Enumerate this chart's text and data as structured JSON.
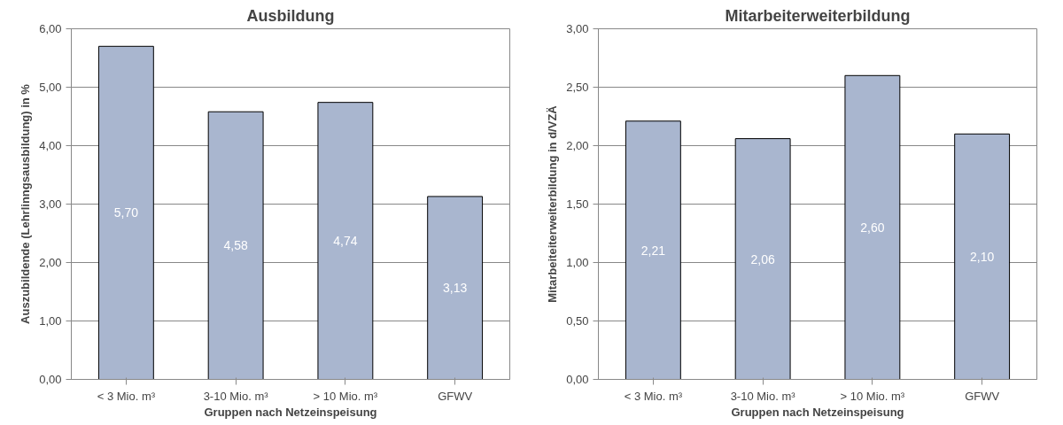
{
  "chart_data": [
    {
      "type": "bar",
      "title": "Ausbildung",
      "xlabel": "Gruppen nach Netzeinspeisung",
      "ylabel": "Auszubildende (Lehrlinngsausbildung) in %",
      "categories": [
        "< 3 Mio. m³",
        "3-10 Mio. m³",
        "> 10 Mio. m³",
        "GFWV"
      ],
      "values": [
        5.7,
        4.58,
        4.74,
        3.13
      ],
      "color": "#a9b6cf",
      "value_labels": [
        "5,70",
        "4,58",
        "4,74",
        "3,13"
      ],
      "ylim": [
        0,
        6
      ],
      "yticks": [
        {
          "value": 0,
          "label": "0,00"
        },
        {
          "value": 1,
          "label": "1,00"
        },
        {
          "value": 2,
          "label": "2,00"
        },
        {
          "value": 3,
          "label": "3,00"
        },
        {
          "value": 4,
          "label": "4,00"
        },
        {
          "value": 5,
          "label": "5,00"
        },
        {
          "value": 6,
          "label": "6,00"
        }
      ],
      "grid": "y",
      "legend": false
    },
    {
      "type": "bar",
      "title": "Mitarbeiterweiterbildung",
      "xlabel": "Gruppen nach Netzeinspeisung",
      "ylabel": "Mitarbeiteiterweiterbildung in d/VZÄ",
      "categories": [
        "< 3 Mio. m³",
        "3-10 Mio. m³",
        "> 10 Mio. m³",
        "GFWV"
      ],
      "values": [
        2.21,
        2.06,
        2.6,
        2.1
      ],
      "color": "#a9b6cf",
      "value_labels": [
        "2,21",
        "2,06",
        "2,60",
        "2,10"
      ],
      "ylim": [
        0,
        3
      ],
      "yticks": [
        {
          "value": 0,
          "label": "0,00"
        },
        {
          "value": 0.5,
          "label": "0,50"
        },
        {
          "value": 1,
          "label": "1,00"
        },
        {
          "value": 1.5,
          "label": "1,50"
        },
        {
          "value": 2,
          "label": "2,00"
        },
        {
          "value": 2.5,
          "label": "2,50"
        },
        {
          "value": 3,
          "label": "3,00"
        }
      ],
      "grid": "y",
      "legend": false
    }
  ]
}
